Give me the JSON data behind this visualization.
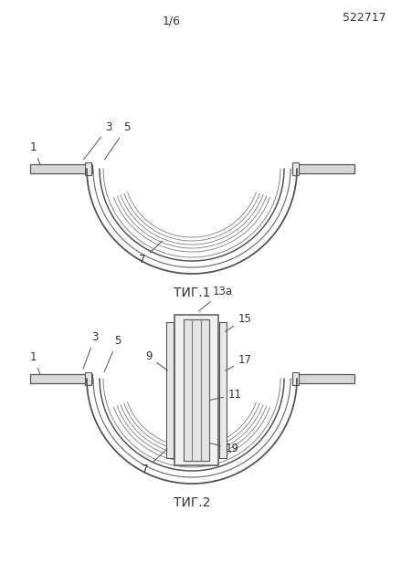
{
  "bg_color": "#ffffff",
  "line_color": "#777777",
  "patent_number": "522717",
  "page_label": "1/6",
  "fig1_label": "ΤИГ.1",
  "fig2_label": "ΤИГ.2",
  "gray_dark": "#555555",
  "gray_mid": "#777777",
  "gray_light": "#aaaaaa",
  "gray_fill": "#d8d8d8",
  "gray_fill2": "#e8e8e8"
}
